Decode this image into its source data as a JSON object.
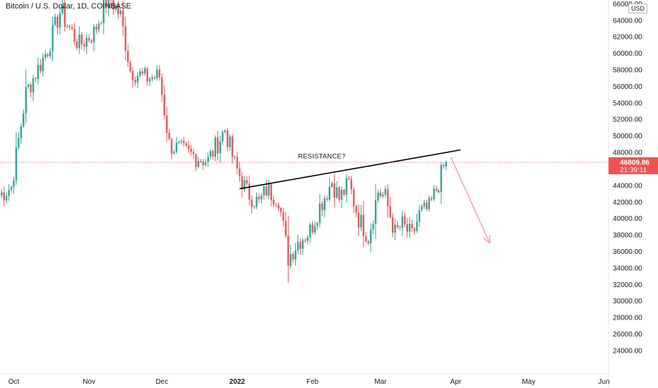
{
  "header": {
    "title": "Bitcoin / U.S. Dollar, 1D, COINBASE",
    "currency_button": "USD"
  },
  "colors": {
    "up": "#26a69a",
    "down": "#ef5350",
    "arrow": "#f7a9a8",
    "price_tag_bg": "#ef5350",
    "price_line": "#ef5350"
  },
  "chart_data": {
    "type": "candlestick",
    "symbol": "Bitcoin / U.S. Dollar",
    "interval": "1D",
    "exchange": "COINBASE",
    "ylim": [
      22800,
      66200
    ],
    "y_ticks": [
      "24000.00",
      "26000.00",
      "28000.00",
      "30000.00",
      "32000.00",
      "34000.00",
      "36000.00",
      "38000.00",
      "40000.00",
      "42000.00",
      "44000.00",
      "46000.00",
      "48000.00",
      "50000.00",
      "52000.00",
      "54000.00",
      "56000.00",
      "58000.00",
      "60000.00",
      "62000.00",
      "64000.00",
      "66000.00"
    ],
    "x_ticks": [
      {
        "label": "Oct",
        "date": "2021-10-01"
      },
      {
        "label": "Nov",
        "date": "2021-11-01"
      },
      {
        "label": "Dec",
        "date": "2021-12-01"
      },
      {
        "label": "2022",
        "date": "2022-01-01"
      },
      {
        "label": "Feb",
        "date": "2022-02-01"
      },
      {
        "label": "Mar",
        "date": "2022-03-01"
      },
      {
        "label": "Apr",
        "date": "2022-04-01"
      },
      {
        "label": "May",
        "date": "2022-05-01"
      },
      {
        "label": "Jun",
        "date": "2022-06-01"
      }
    ],
    "path_anchors": [
      [
        "2021-09-25",
        42800
      ],
      [
        "2021-09-30",
        43800
      ],
      [
        "2021-10-06",
        55200
      ],
      [
        "2021-10-15",
        60500
      ],
      [
        "2021-10-20",
        65000
      ],
      [
        "2021-10-28",
        61000
      ],
      [
        "2021-11-03",
        62500
      ],
      [
        "2021-11-09",
        67000
      ],
      [
        "2021-11-14",
        64500
      ],
      [
        "2021-11-18",
        58000
      ],
      [
        "2021-11-24",
        57000
      ],
      [
        "2021-11-30",
        57200
      ],
      [
        "2021-12-04",
        49000
      ],
      [
        "2021-12-10",
        48000
      ],
      [
        "2021-12-15",
        47500
      ],
      [
        "2021-12-20",
        47000
      ],
      [
        "2021-12-27",
        50800
      ],
      [
        "2021-12-31",
        46500
      ],
      [
        "2022-01-05",
        43200
      ],
      [
        "2022-01-10",
        41800
      ],
      [
        "2022-01-13",
        43500
      ],
      [
        "2022-01-18",
        42500
      ],
      [
        "2022-01-22",
        35200
      ],
      [
        "2022-01-26",
        37200
      ],
      [
        "2022-01-31",
        38500
      ],
      [
        "2022-02-04",
        41500
      ],
      [
        "2022-02-09",
        44500
      ],
      [
        "2022-02-12",
        42400
      ],
      [
        "2022-02-16",
        44200
      ],
      [
        "2022-02-20",
        40000
      ],
      [
        "2022-02-24",
        37800
      ],
      [
        "2022-02-28",
        43300
      ],
      [
        "2022-03-03",
        42500
      ],
      [
        "2022-03-07",
        38200
      ],
      [
        "2022-03-10",
        39200
      ],
      [
        "2022-03-14",
        37800
      ],
      [
        "2022-03-17",
        40500
      ],
      [
        "2022-03-21",
        41200
      ],
      [
        "2022-03-25",
        44300
      ],
      [
        "2022-03-28",
        47100
      ]
    ],
    "last_close": 46809.86,
    "price_label": "46809.86",
    "countdown_label": "21:39:11",
    "annotations": [
      {
        "type": "trendline",
        "label": "RESISTANCE?",
        "from": [
          "2022-01-02",
          43600
        ],
        "to": [
          "2022-04-03",
          48300
        ]
      },
      {
        "type": "arrow",
        "from": [
          "2022-03-30",
          47400
        ],
        "to": [
          "2022-04-15",
          37000
        ]
      }
    ],
    "grid": false,
    "legend": "none"
  }
}
